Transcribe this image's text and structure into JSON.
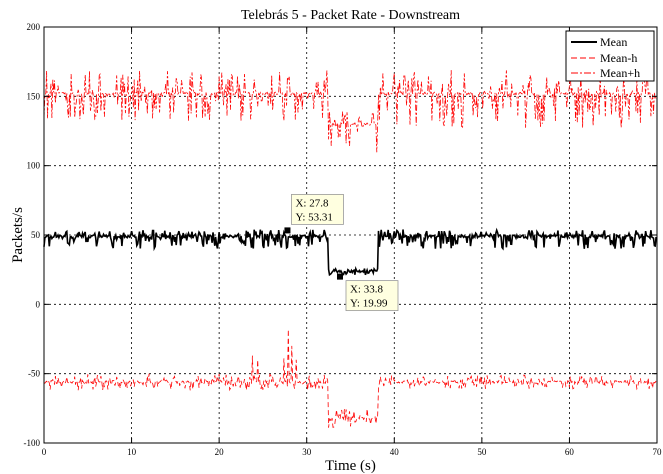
{
  "chart_data": {
    "type": "line",
    "title": "Telebrás 5 - Packet Rate - Downstream",
    "xlabel": "Time (s)",
    "ylabel": "Packets/s",
    "xlim": [
      0,
      70
    ],
    "ylim": [
      -100,
      200
    ],
    "xticks": [
      0,
      10,
      20,
      30,
      40,
      50,
      60,
      70
    ],
    "yticks": [
      -100,
      -50,
      0,
      50,
      100,
      150,
      200
    ],
    "grid": true,
    "legend_position": "top-right",
    "series": [
      {
        "name": "Mean",
        "color": "#000000",
        "style": "solid",
        "segments": [
          {
            "x_start": 0,
            "x_end": 32.5,
            "base": 49,
            "noise_down": 9,
            "noise_up": 5
          },
          {
            "x_start": 32.5,
            "x_end": 38.2,
            "base": 24,
            "noise_down": 3,
            "noise_up": 2
          },
          {
            "x_start": 38.2,
            "x_end": 70,
            "base": 49,
            "noise_down": 9,
            "noise_up": 5
          }
        ]
      },
      {
        "name": "Mean-h",
        "color": "#ff0000",
        "style": "dashed",
        "segments": [
          {
            "x_start": 0,
            "x_end": 32.5,
            "base": -56,
            "noise_down": 6,
            "noise_up": 6
          },
          {
            "x_start": 32.5,
            "x_end": 38.2,
            "base": -82,
            "noise_down": 7,
            "noise_up": 7
          },
          {
            "x_start": 38.2,
            "x_end": 70,
            "base": -56,
            "noise_down": 5,
            "noise_up": 5
          }
        ],
        "spikes": [
          {
            "x": 23.8,
            "y": -37
          },
          {
            "x": 24.4,
            "y": -40
          },
          {
            "x": 27.4,
            "y": -39
          },
          {
            "x": 27.9,
            "y": -18
          },
          {
            "x": 28.3,
            "y": -30
          },
          {
            "x": 28.8,
            "y": -40
          }
        ]
      },
      {
        "name": "Mean+h",
        "color": "#ff0000",
        "style": "dashdot",
        "segments": [
          {
            "x_start": 0,
            "x_end": 32.5,
            "base": 152,
            "noise_down": 20,
            "noise_up": 17
          },
          {
            "x_start": 32.5,
            "x_end": 38.2,
            "base": 130,
            "noise_down": 23,
            "noise_up": 10
          },
          {
            "x_start": 38.2,
            "x_end": 70,
            "base": 152,
            "noise_down": 25,
            "noise_up": 17
          }
        ]
      }
    ],
    "datatips": [
      {
        "x_label": "X: 27.8",
        "y_label": "Y: 53.31",
        "x": 27.8,
        "y": 53.31
      },
      {
        "x_label": "X: 33.8",
        "y_label": "Y: 19.99",
        "x": 33.8,
        "y": 19.99
      }
    ]
  }
}
